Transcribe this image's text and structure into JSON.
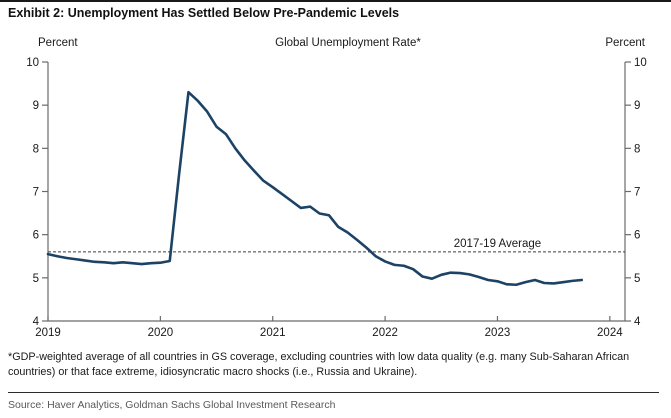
{
  "page": {
    "exhibit_title": "Exhibit 2: Unemployment Has Settled Below Pre-Pandemic Levels",
    "footnote": "*GDP-weighted average of all countries in GS coverage, excluding countries with low data quality (e.g. many Sub-Saharan African countries) or that face extreme, idiosyncratic macro shocks (i.e., Russia and Ukraine).",
    "source": "Source: Haver Analytics, Goldman Sachs Global Investment Research"
  },
  "chart_data": {
    "type": "line",
    "title": "Global Unemployment Rate*",
    "left_axis_label": "Percent",
    "right_axis_label": "Percent",
    "ylim": [
      4,
      10
    ],
    "y_ticks": [
      4,
      5,
      6,
      7,
      8,
      9,
      10
    ],
    "x_ticks": [
      2019,
      2020,
      2021,
      2022,
      2023,
      2024
    ],
    "xlim": [
      2019.0,
      2024.135
    ],
    "grid": false,
    "legend_position": "none",
    "reference_line": {
      "value": 5.6,
      "label": "2017-19 Average"
    },
    "line_color": "#1c4265",
    "axis_color": "#6b6b6b",
    "label_color": "#1a1a1a",
    "series": [
      {
        "name": "Global unemployment rate (GDP-weighted, % )",
        "x_start": 2019.0,
        "x_step": 0.0833333,
        "values": [
          5.55,
          5.5,
          5.46,
          5.43,
          5.4,
          5.37,
          5.36,
          5.34,
          5.36,
          5.34,
          5.32,
          5.34,
          5.35,
          5.39,
          7.4,
          9.3,
          9.1,
          8.85,
          8.5,
          8.33,
          8.0,
          7.72,
          7.48,
          7.25,
          7.1,
          6.94,
          6.78,
          6.62,
          6.65,
          6.49,
          6.45,
          6.18,
          6.05,
          5.88,
          5.7,
          5.5,
          5.38,
          5.3,
          5.28,
          5.2,
          5.03,
          4.98,
          5.07,
          5.12,
          5.11,
          5.08,
          5.02,
          4.95,
          4.92,
          4.85,
          4.84,
          4.9,
          4.95,
          4.88,
          4.87,
          4.9,
          4.93,
          4.95
        ]
      }
    ]
  }
}
